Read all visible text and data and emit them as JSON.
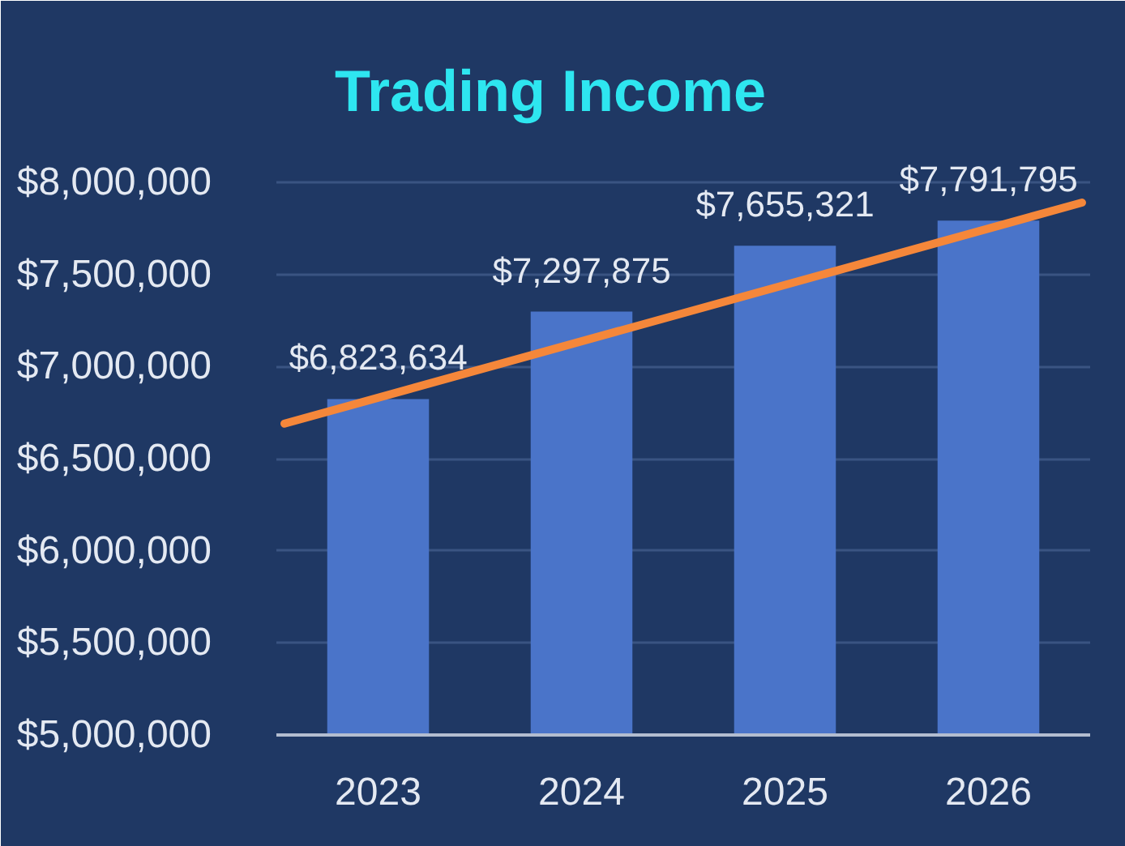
{
  "chart_data": {
    "type": "bar",
    "title": "Trading Income",
    "x": [
      2023,
      2024,
      2025,
      2026
    ],
    "xlim": [
      2022.5,
      2026.5
    ],
    "xticks": [
      2023,
      2024,
      2025,
      2026
    ],
    "ylim": [
      5000000,
      8000000
    ],
    "yticks": [
      {
        "value": 5000000,
        "label": "$5,000,000"
      },
      {
        "value": 5500000,
        "label": "$5,500,000"
      },
      {
        "value": 6000000,
        "label": "$6,000,000"
      },
      {
        "value": 6500000,
        "label": "$6,500,000"
      },
      {
        "value": 7000000,
        "label": "$7,000,000"
      },
      {
        "value": 7500000,
        "label": "$7,500,000"
      },
      {
        "value": 8000000,
        "label": "$8,000,000"
      }
    ],
    "grid": "y",
    "series": [
      {
        "color": "#4a74c9",
        "values": [
          6823634,
          7297875,
          7655321,
          7791795
        ],
        "value_labels": [
          "$6,823,634",
          "$7,297,875",
          "$7,655,321",
          "$7,791,795"
        ]
      },
      {
        "type": "line",
        "x": [
          2022.54,
          2026.46
        ],
        "values": [
          6690000,
          7890000
        ],
        "color": "#f5873a"
      }
    ]
  }
}
